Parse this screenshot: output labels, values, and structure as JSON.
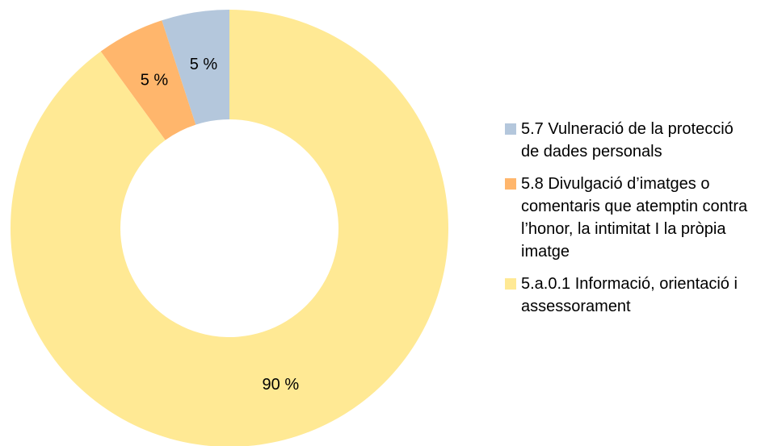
{
  "chart_data": {
    "type": "donut",
    "categories": [
      "5.7 Vulneració de la protecció de dades personals",
      "5.8 Divulgació d’imatges o comentaris que atemptin contra l’honor, la intimitat I la pròpia imatge",
      "5.a.0.1 Informació, orientació i assessorament"
    ],
    "values": [
      5,
      5,
      90
    ],
    "value_labels": [
      "5 %",
      "5 %",
      "90 %"
    ],
    "colors": [
      "#b4c7dc",
      "#ffb66c",
      "#ffe994"
    ],
    "legend": "right"
  }
}
